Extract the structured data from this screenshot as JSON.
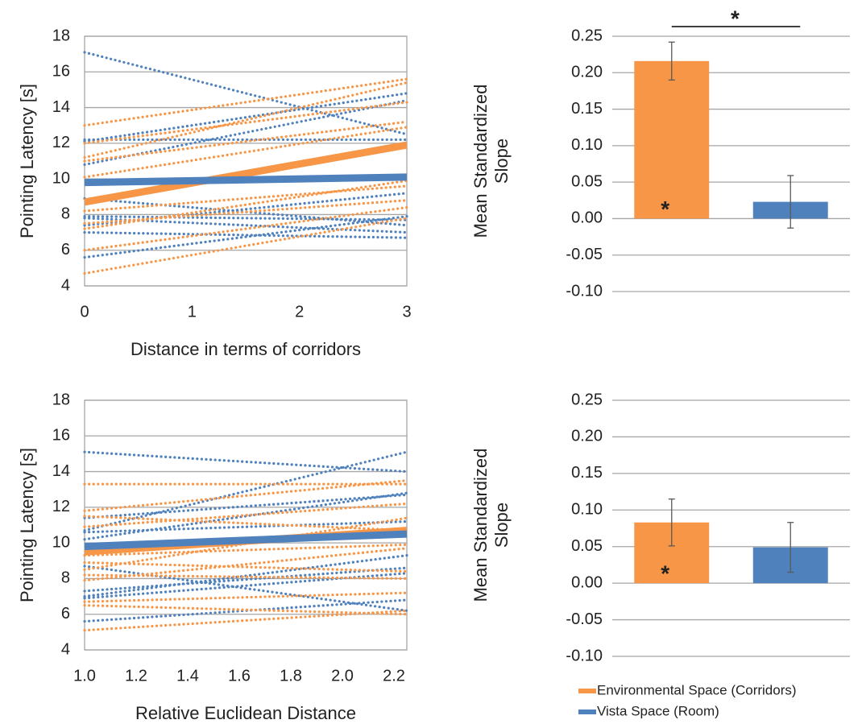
{
  "chart_data": [
    {
      "type": "line",
      "ylabel": "Pointing Latency [s]",
      "xlabel": "Distance in terms of corridors",
      "x": [
        0,
        3
      ],
      "xlim": [
        0,
        3
      ],
      "xticks": [
        0,
        1,
        2,
        3
      ],
      "ylim": [
        4,
        18
      ],
      "yticks": [
        4,
        6,
        8,
        10,
        12,
        14,
        16,
        18
      ],
      "grid": true,
      "series": [
        {
          "color": "#4f81bd",
          "style": "dotted",
          "values": [
            17.1,
            12.5
          ]
        },
        {
          "color": "#4f81bd",
          "style": "dotted",
          "values": [
            12.2,
            12.2
          ]
        },
        {
          "color": "#4f81bd",
          "style": "dotted",
          "values": [
            12.1,
            14.8
          ]
        },
        {
          "color": "#4f81bd",
          "style": "dotted",
          "values": [
            10.8,
            14.4
          ]
        },
        {
          "color": "#4f81bd",
          "style": "dotted",
          "values": [
            8.9,
            7.4
          ]
        },
        {
          "color": "#4f81bd",
          "style": "dotted",
          "values": [
            7.9,
            7.7
          ]
        },
        {
          "color": "#4f81bd",
          "style": "dotted",
          "values": [
            7.8,
            7.0
          ]
        },
        {
          "color": "#4f81bd",
          "style": "dotted",
          "values": [
            7.4,
            9.2
          ]
        },
        {
          "color": "#4f81bd",
          "style": "dotted",
          "values": [
            7.0,
            6.7
          ]
        },
        {
          "color": "#4f81bd",
          "style": "dotted",
          "values": [
            5.6,
            7.9
          ]
        },
        {
          "color": "#f79646",
          "style": "dotted",
          "values": [
            13.0,
            15.6
          ]
        },
        {
          "color": "#f79646",
          "style": "dotted",
          "values": [
            12.0,
            14.3
          ]
        },
        {
          "color": "#f79646",
          "style": "dotted",
          "values": [
            11.2,
            15.4
          ]
        },
        {
          "color": "#f79646",
          "style": "dotted",
          "values": [
            11.0,
            13.2
          ]
        },
        {
          "color": "#f79646",
          "style": "dotted",
          "values": [
            10.1,
            12.9
          ]
        },
        {
          "color": "#f79646",
          "style": "dotted",
          "values": [
            8.2,
            9.6
          ]
        },
        {
          "color": "#f79646",
          "style": "dotted",
          "values": [
            7.5,
            8.8
          ]
        },
        {
          "color": "#f79646",
          "style": "dotted",
          "values": [
            7.2,
            9.9
          ]
        },
        {
          "color": "#f79646",
          "style": "dotted",
          "values": [
            6.0,
            8.4
          ]
        },
        {
          "color": "#f79646",
          "style": "dotted",
          "values": [
            4.7,
            7.8
          ]
        },
        {
          "color": "#f79646",
          "style": "solid",
          "values": [
            8.7,
            11.9
          ]
        },
        {
          "color": "#4f81bd",
          "style": "solid",
          "values": [
            9.8,
            10.1
          ]
        }
      ]
    },
    {
      "type": "bar",
      "ylabel": "Mean Standardized Slope",
      "ylim": [
        -0.1,
        0.25
      ],
      "yticks": [
        {
          "value": -0.1,
          "label": "-0.10"
        },
        -0.05,
        {
          "value": 0,
          "label": "0.00"
        },
        0.05,
        {
          "value": 0.1,
          "label": "0.10"
        },
        0.15,
        {
          "value": 0.2,
          "label": "0.20"
        },
        0.25
      ],
      "grid": true,
      "series": [
        {
          "color": "#f79646",
          "values": [
            0.216
          ],
          "errors": [
            0.026
          ]
        },
        {
          "color": "#4f81bd",
          "values": [
            0.023
          ],
          "errors": [
            0.036
          ]
        }
      ],
      "annotations": [
        "*",
        "*"
      ]
    },
    {
      "type": "line",
      "ylabel": "Pointing Latency [s]",
      "xlabel": "Relative Euclidean Distance",
      "x": [
        1.0,
        2.25
      ],
      "xlim": [
        1.0,
        2.25
      ],
      "xticks": [
        {
          "value": 1,
          "label": "1.0"
        },
        1.2,
        1.4,
        1.6,
        1.8,
        {
          "value": 2,
          "label": "2.0"
        },
        2.2
      ],
      "ylim": [
        4,
        18
      ],
      "yticks": [
        4,
        6,
        8,
        10,
        12,
        14,
        16,
        18
      ],
      "grid": true,
      "series": [
        {
          "color": "#4f81bd",
          "style": "dotted",
          "values": [
            15.1,
            14.0
          ]
        },
        {
          "color": "#4f81bd",
          "style": "dotted",
          "values": [
            10.7,
            15.1
          ]
        },
        {
          "color": "#4f81bd",
          "style": "dotted",
          "values": [
            11.4,
            12.7
          ]
        },
        {
          "color": "#4f81bd",
          "style": "dotted",
          "values": [
            10.2,
            12.8
          ]
        },
        {
          "color": "#4f81bd",
          "style": "dotted",
          "values": [
            10.6,
            11.2
          ]
        },
        {
          "color": "#4f81bd",
          "style": "dotted",
          "values": [
            8.7,
            6.2
          ]
        },
        {
          "color": "#4f81bd",
          "style": "dotted",
          "values": [
            7.3,
            8.6
          ]
        },
        {
          "color": "#4f81bd",
          "style": "dotted",
          "values": [
            7.0,
            9.3
          ]
        },
        {
          "color": "#4f81bd",
          "style": "dotted",
          "values": [
            6.9,
            8.3
          ]
        },
        {
          "color": "#4f81bd",
          "style": "dotted",
          "values": [
            5.6,
            6.8
          ]
        },
        {
          "color": "#f79646",
          "style": "dotted",
          "values": [
            13.3,
            13.3
          ]
        },
        {
          "color": "#f79646",
          "style": "dotted",
          "values": [
            11.8,
            13.5
          ]
        },
        {
          "color": "#f79646",
          "style": "dotted",
          "values": [
            11.5,
            10.7
          ]
        },
        {
          "color": "#f79646",
          "style": "dotted",
          "values": [
            10.9,
            12.2
          ]
        },
        {
          "color": "#f79646",
          "style": "dotted",
          "values": [
            9.3,
            9.9
          ]
        },
        {
          "color": "#f79646",
          "style": "dotted",
          "values": [
            8.9,
            8.4
          ]
        },
        {
          "color": "#f79646",
          "style": "dotted",
          "values": [
            8.5,
            11.4
          ]
        },
        {
          "color": "#f79646",
          "style": "dotted",
          "values": [
            8.2,
            8.0
          ]
        },
        {
          "color": "#f79646",
          "style": "dotted",
          "values": [
            7.9,
            9.7
          ]
        },
        {
          "color": "#f79646",
          "style": "dotted",
          "values": [
            6.7,
            7.2
          ]
        },
        {
          "color": "#f79646",
          "style": "dotted",
          "values": [
            6.5,
            6.0
          ]
        },
        {
          "color": "#f79646",
          "style": "dotted",
          "values": [
            5.1,
            6.2
          ]
        },
        {
          "color": "#f79646",
          "style": "solid",
          "values": [
            9.5,
            10.7
          ]
        },
        {
          "color": "#4f81bd",
          "style": "solid",
          "values": [
            9.8,
            10.5
          ]
        }
      ]
    },
    {
      "type": "bar",
      "ylabel": "Mean Standardized Slope",
      "ylim": [
        -0.1,
        0.25
      ],
      "yticks": [
        {
          "value": -0.1,
          "label": "-0.10"
        },
        -0.05,
        {
          "value": 0,
          "label": "0.00"
        },
        0.05,
        {
          "value": 0.1,
          "label": "0.10"
        },
        0.15,
        {
          "value": 0.2,
          "label": "0.20"
        },
        0.25
      ],
      "grid": true,
      "series": [
        {
          "name": "Environmental Space (Corridors)",
          "color": "#f79646",
          "values": [
            0.083
          ],
          "errors": [
            0.032
          ]
        },
        {
          "name": "Vista Space (Room)",
          "color": "#4f81bd",
          "values": [
            0.049
          ],
          "errors": [
            0.034
          ]
        }
      ],
      "annotations": [
        "*"
      ],
      "legend": "bottom"
    }
  ]
}
